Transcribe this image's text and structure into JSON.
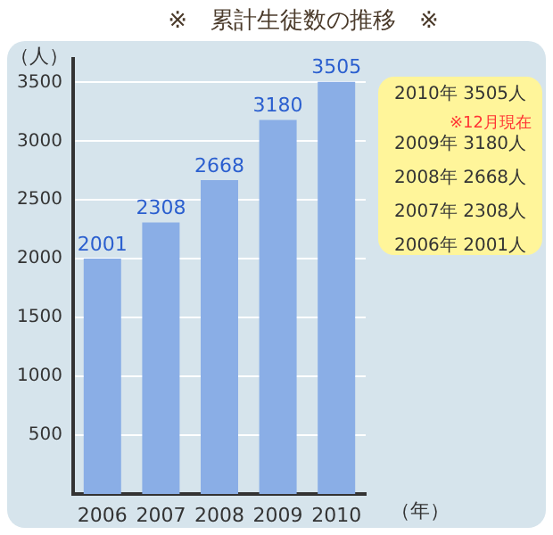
{
  "chart_data": {
    "type": "bar",
    "title": "※　累計生徒数の推移　※",
    "ylabel": "（人）",
    "xlabel": "（年）",
    "categories": [
      "2006",
      "2007",
      "2008",
      "2009",
      "2010"
    ],
    "values": [
      2001,
      2308,
      2668,
      3180,
      3505
    ],
    "color": "#8aaee6",
    "ylim": [
      0,
      3700
    ],
    "yticks": [
      500,
      1000,
      1500,
      2000,
      2500,
      3000,
      3500
    ],
    "grid": "y",
    "data_labels": true,
    "legend": false,
    "annotations": [
      "2010年 3505人",
      "※12月現在",
      "2009年 3180人",
      "2008年 2668人",
      "2007年 2308人",
      "2006年 2001人"
    ]
  }
}
